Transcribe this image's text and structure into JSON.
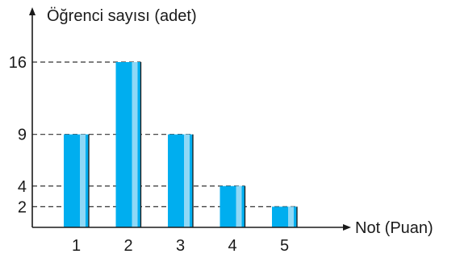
{
  "chart_data": {
    "type": "bar",
    "categories": [
      "1",
      "2",
      "3",
      "4",
      "5"
    ],
    "values": [
      9,
      16,
      9,
      4,
      2
    ],
    "ylabel": "Öğrenci sayısı (adet)",
    "xlabel": "Not (Puan)",
    "yticks": [
      "16",
      "9",
      "4",
      "2"
    ],
    "ylim": [
      0,
      16
    ],
    "grid": "dashed reference lines at bar heights",
    "legend": "none",
    "colors": {
      "bar_main": "#00aeef",
      "bar_highlight": "#8fd8f6",
      "axis": "#1a1a1a",
      "dashed": "#333333"
    }
  }
}
